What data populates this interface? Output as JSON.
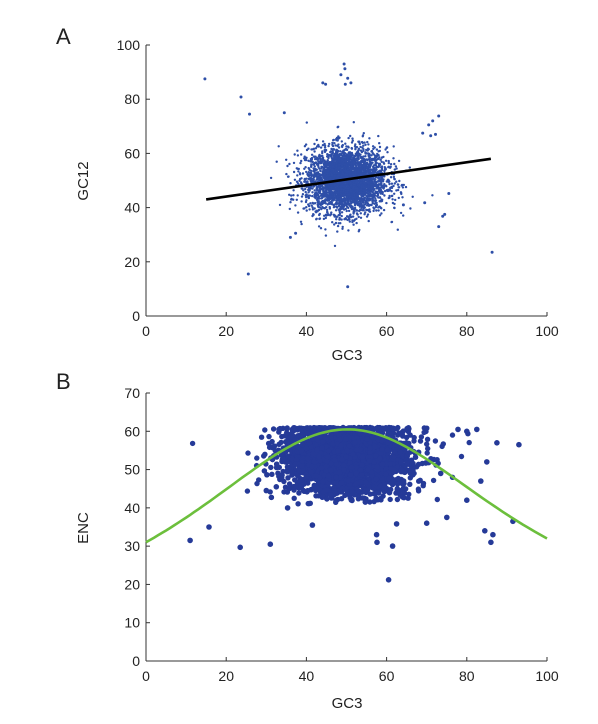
{
  "colors": {
    "points": "#2e4fa8",
    "points_b": "#253a98",
    "regression_line": "#000000",
    "curve": "#6cbf3c",
    "axis": "#333333"
  },
  "chart_data": [
    {
      "panel": "A",
      "type": "scatter",
      "xlabel": "GC3",
      "ylabel": "GC12",
      "xlim": [
        0,
        100
      ],
      "ylim": [
        0,
        100
      ],
      "xticks": [
        0,
        20,
        40,
        60,
        80,
        100
      ],
      "yticks": [
        0,
        20,
        40,
        60,
        80,
        100
      ],
      "grid": false,
      "cluster": {
        "center": [
          50,
          50
        ],
        "spread": [
          5,
          6
        ],
        "count": 3500
      },
      "points": [
        [
          14.7,
          87.5
        ],
        [
          23.7,
          80.8
        ],
        [
          25.8,
          74.5
        ],
        [
          34.5,
          75.0
        ],
        [
          44.1,
          86.0
        ],
        [
          44.8,
          85.5
        ],
        [
          48.6,
          89.0
        ],
        [
          49.4,
          93.0
        ],
        [
          49.6,
          91.2
        ],
        [
          50.3,
          87.7
        ],
        [
          49.7,
          85.5
        ],
        [
          51.1,
          86.0
        ],
        [
          71.5,
          72.0
        ],
        [
          70.5,
          70.5
        ],
        [
          69.0,
          67.5
        ],
        [
          71.0,
          66.5
        ],
        [
          72.2,
          67.0
        ],
        [
          73.0,
          73.8
        ],
        [
          74.5,
          37.5
        ],
        [
          74.0,
          36.8
        ],
        [
          86.3,
          23.5
        ],
        [
          25.5,
          15.5
        ],
        [
          50.3,
          10.8
        ],
        [
          36.0,
          29.0
        ],
        [
          73.0,
          33.0
        ],
        [
          75.5,
          45.2
        ],
        [
          69.5,
          41.8
        ],
        [
          37.3,
          30.5
        ],
        [
          64.2,
          41.0
        ]
      ],
      "regression": {
        "x": [
          15,
          86
        ],
        "y": [
          43,
          58
        ]
      }
    },
    {
      "panel": "B",
      "type": "scatter",
      "xlabel": "GC3",
      "ylabel": "ENC",
      "xlim": [
        0,
        100
      ],
      "ylim": [
        0,
        70
      ],
      "xticks": [
        0,
        20,
        40,
        60,
        80,
        100
      ],
      "yticks": [
        0,
        10,
        20,
        30,
        40,
        50,
        60,
        70
      ],
      "grid": false,
      "cluster": {
        "center": [
          50,
          53
        ],
        "spread": [
          8,
          5
        ],
        "count": 2800,
        "cap": 61
      },
      "points": [
        [
          11.0,
          31.5
        ],
        [
          15.7,
          35.0
        ],
        [
          23.5,
          29.7
        ],
        [
          31.0,
          30.5
        ],
        [
          32.5,
          45.5
        ],
        [
          30.0,
          44.5
        ],
        [
          35.3,
          40.0
        ],
        [
          57.6,
          31.0
        ],
        [
          60.5,
          21.2
        ],
        [
          61.5,
          30.0
        ],
        [
          57.5,
          33.0
        ],
        [
          77.8,
          60.5
        ],
        [
          80.0,
          60.0
        ],
        [
          82.5,
          60.5
        ],
        [
          87.5,
          57.0
        ],
        [
          93.0,
          56.5
        ],
        [
          85.0,
          52.0
        ],
        [
          83.5,
          47.0
        ],
        [
          80.0,
          42.0
        ],
        [
          84.5,
          34.0
        ],
        [
          86.0,
          31.0
        ],
        [
          86.5,
          33.0
        ],
        [
          91.5,
          36.5
        ],
        [
          73.5,
          49.0
        ],
        [
          75.0,
          37.5
        ],
        [
          70.0,
          36.0
        ],
        [
          62.5,
          35.8
        ],
        [
          41.5,
          35.5
        ]
      ],
      "curve": {
        "type": "enc_expected"
      }
    }
  ]
}
